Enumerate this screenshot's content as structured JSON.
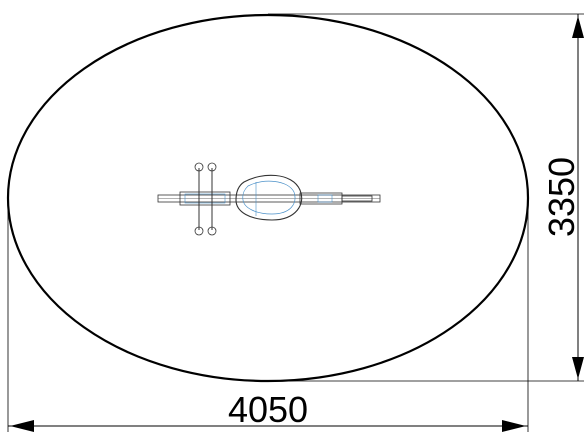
{
  "drawing": {
    "width_label": "4050",
    "height_label": "3350",
    "line_color": "#000000",
    "equipment_line_color": "#333333",
    "equipment_accent_color": "#4a90c8"
  }
}
